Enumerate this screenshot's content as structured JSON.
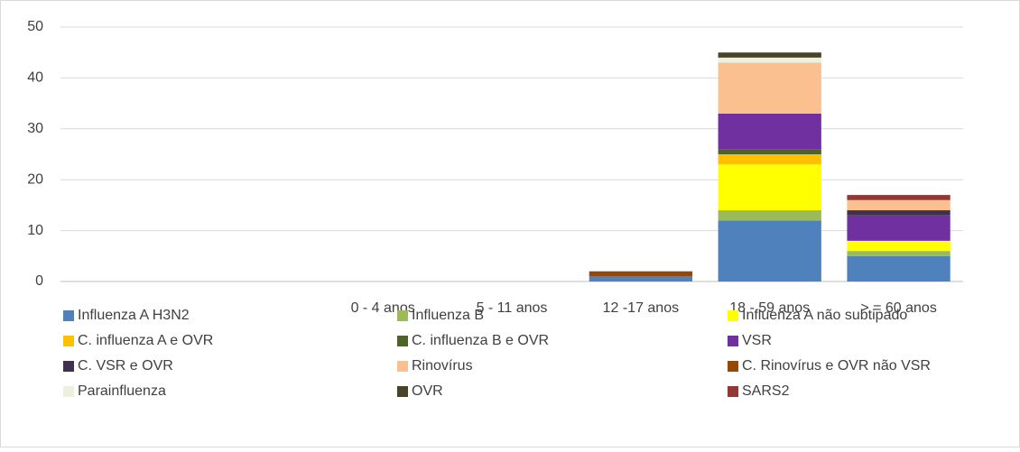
{
  "chart_data": {
    "type": "bar",
    "stacked": true,
    "categories": [
      null,
      null,
      "0 - 4  anos",
      "5 - 11 anos",
      "12 -17 anos",
      "18 - 59 anos",
      "> = 60 anos"
    ],
    "series": [
      {
        "name": "Influenza A H3N2",
        "color": "#4f81bd",
        "values": [
          null,
          null,
          0,
          0,
          1,
          12,
          5
        ]
      },
      {
        "name": "Influenza B",
        "color": "#9bbb59",
        "values": [
          null,
          null,
          0,
          0,
          0,
          2,
          1
        ]
      },
      {
        "name": "Influenza A não subtipado",
        "color": "#ffff00",
        "values": [
          null,
          null,
          0,
          0,
          0,
          9,
          2
        ]
      },
      {
        "name": "C. influenza A e OVR",
        "color": "#ffc000",
        "values": [
          null,
          null,
          0,
          0,
          0,
          2,
          0
        ]
      },
      {
        "name": "C. influenza B e OVR",
        "color": "#4f6228",
        "values": [
          null,
          null,
          0,
          0,
          0,
          1,
          0
        ]
      },
      {
        "name": "VSR",
        "color": "#7030a0",
        "values": [
          null,
          null,
          0,
          0,
          0,
          7,
          5
        ]
      },
      {
        "name": "C. VSR e OVR",
        "color": "#403151",
        "values": [
          null,
          null,
          0,
          0,
          0,
          0,
          1
        ]
      },
      {
        "name": "Rinovírus",
        "color": "#fac090",
        "values": [
          null,
          null,
          0,
          0,
          0,
          10,
          2
        ]
      },
      {
        "name": "C. Rinovírus e OVR não VSR",
        "color": "#974706",
        "values": [
          null,
          null,
          0,
          0,
          1,
          0,
          0
        ]
      },
      {
        "name": "Parainfluenza",
        "color": "#ebf1de",
        "values": [
          null,
          null,
          0,
          0,
          0,
          1,
          0
        ]
      },
      {
        "name": "OVR",
        "color": "#494429",
        "values": [
          null,
          null,
          0,
          0,
          0,
          1,
          0
        ]
      },
      {
        "name": "SARS2",
        "color": "#953735",
        "values": [
          null,
          null,
          0,
          0,
          0,
          0,
          1
        ]
      }
    ],
    "ylim": [
      0,
      50
    ],
    "yticks": [
      0,
      10,
      20,
      30,
      40,
      50
    ],
    "grid": true,
    "legend": "bottom"
  }
}
